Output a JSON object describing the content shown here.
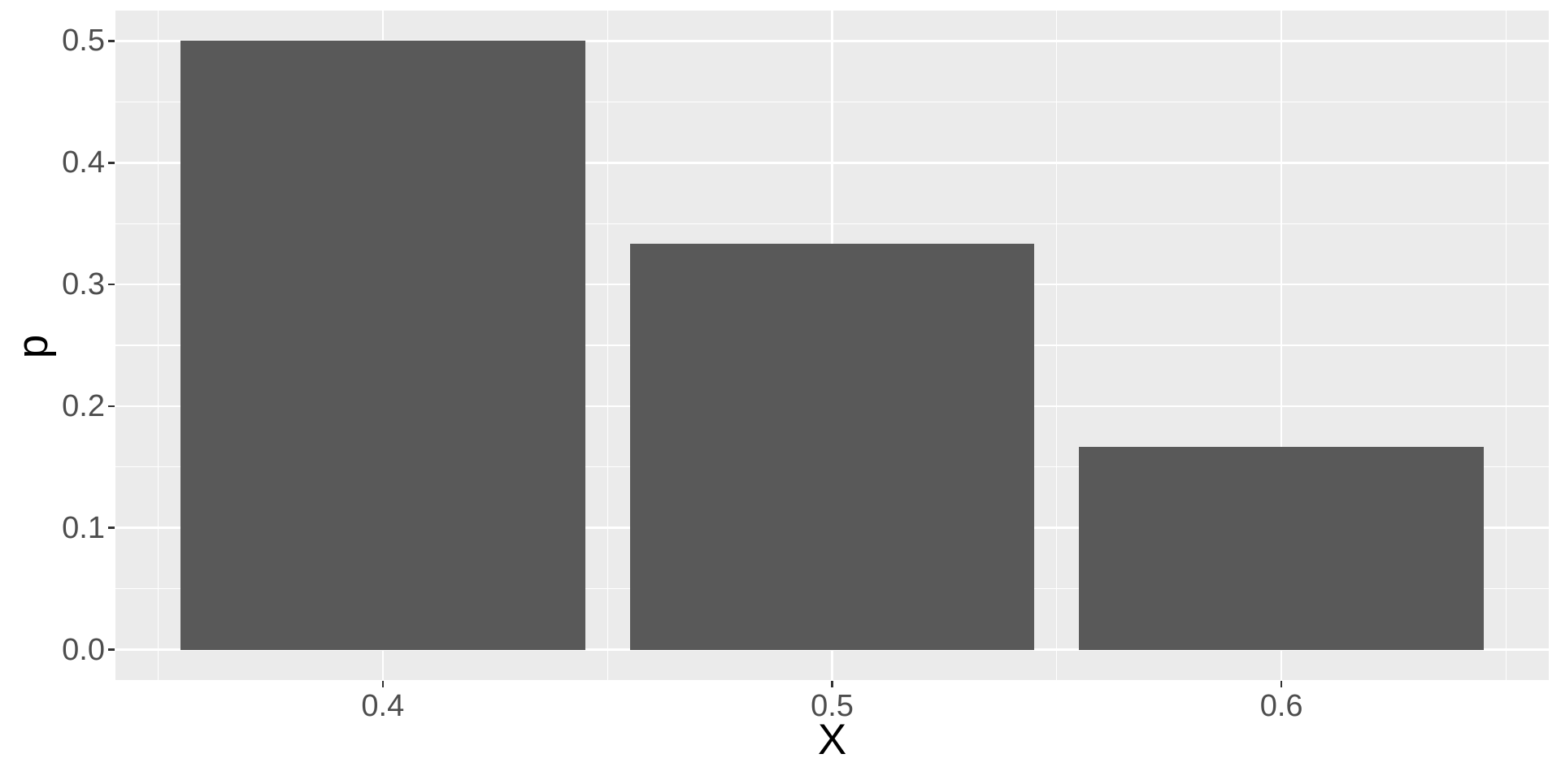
{
  "chart_data": {
    "type": "bar",
    "title": "",
    "xlabel": "X",
    "ylabel": "p",
    "x": [
      0.4,
      0.5,
      0.6
    ],
    "values": [
      0.5,
      0.3333,
      0.1667
    ],
    "bar_width": 0.09,
    "xlim": [
      0.3405,
      0.6595
    ],
    "ylim": [
      -0.025,
      0.525
    ],
    "x_ticks": [
      {
        "value": 0.4,
        "label": "0.4"
      },
      {
        "value": 0.5,
        "label": "0.5"
      },
      {
        "value": 0.6,
        "label": "0.6"
      }
    ],
    "y_ticks": [
      {
        "value": 0.0,
        "label": "0.0"
      },
      {
        "value": 0.1,
        "label": "0.1"
      },
      {
        "value": 0.2,
        "label": "0.2"
      },
      {
        "value": 0.3,
        "label": "0.3"
      },
      {
        "value": 0.4,
        "label": "0.4"
      },
      {
        "value": 0.5,
        "label": "0.5"
      }
    ],
    "x_minor_breaks": [
      0.35,
      0.45,
      0.55,
      0.65
    ],
    "y_minor_breaks": [
      0.05,
      0.15,
      0.25,
      0.35,
      0.45
    ],
    "grid": true,
    "legend_position": "none",
    "colors": {
      "bar_fill": "#595959",
      "panel_background": "#EBEBEB",
      "grid_major": "#FFFFFF",
      "grid_minor": "#FFFFFF",
      "tick_label": "#4D4D4D",
      "tick_mark": "#333333",
      "axis_title": "#000000",
      "figure_background": "#FFFFFF"
    }
  }
}
